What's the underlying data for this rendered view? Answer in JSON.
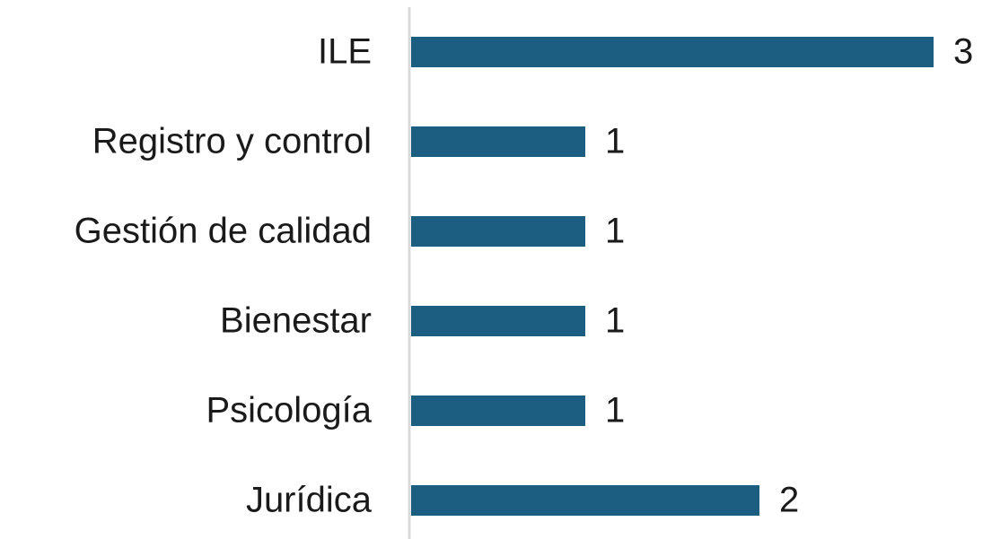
{
  "chart_data": {
    "type": "hbar",
    "categories": [
      "ILE",
      "Registro y control",
      "Gestión de calidad",
      "Bienestar",
      "Psicología",
      "Jurídica"
    ],
    "values": [
      3,
      1,
      1,
      1,
      1,
      2
    ],
    "color": "#1b5e82",
    "xlim": [
      0,
      3
    ]
  }
}
